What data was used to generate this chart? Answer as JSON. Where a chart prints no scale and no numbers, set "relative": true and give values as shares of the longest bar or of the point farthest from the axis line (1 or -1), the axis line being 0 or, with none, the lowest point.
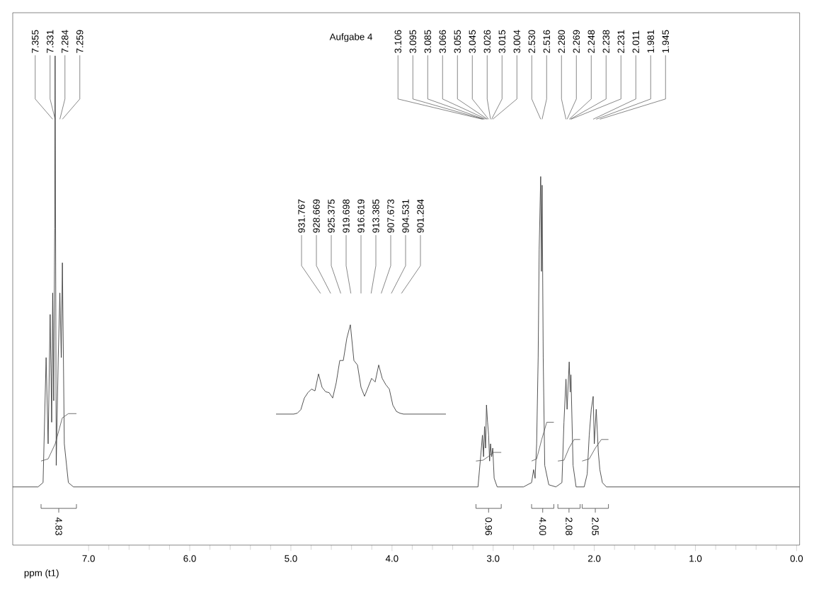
{
  "chart_data": [
    {
      "type": "line",
      "title": "Aufgabe 4",
      "xlabel": "ppm (t1)",
      "relative": true,
      "marker": "none",
      "xlim": [
        7.75,
        -0.03
      ],
      "xticks": [
        {
          "value": 7,
          "label": "7.0"
        },
        {
          "value": 6,
          "label": "6.0"
        },
        {
          "value": 5,
          "label": "5.0"
        },
        {
          "value": 4,
          "label": "4.0"
        },
        {
          "value": 3,
          "label": "3.0"
        },
        {
          "value": 2,
          "label": "2.0"
        },
        {
          "value": 1,
          "label": "1.0"
        },
        {
          "value": 0,
          "label": "0.0"
        }
      ],
      "series": [
        {
          "color": "#333333",
          "x": [
            7.75,
            7.5,
            7.45,
            7.42,
            7.4,
            7.38,
            7.365,
            7.355,
            7.345,
            7.335,
            7.331,
            7.32,
            7.3,
            7.284,
            7.27,
            7.259,
            7.24,
            7.2,
            7.15,
            5.0,
            3.3,
            3.15,
            3.12,
            3.106,
            3.095,
            3.085,
            3.075,
            3.066,
            3.055,
            3.045,
            3.035,
            3.026,
            3.015,
            3.004,
            2.99,
            2.96,
            2.7,
            2.62,
            2.6,
            2.585,
            2.57,
            2.555,
            2.545,
            2.53,
            2.523,
            2.516,
            2.505,
            2.49,
            2.45,
            2.38,
            2.32,
            2.3,
            2.28,
            2.269,
            2.248,
            2.238,
            2.231,
            2.21,
            2.18,
            2.1,
            2.07,
            2.05,
            2.03,
            2.011,
            2.0,
            1.981,
            1.96,
            1.945,
            1.92,
            1.88,
            0.0,
            -0.03
          ],
          "values": [
            0,
            0,
            0.01,
            0.3,
            0.1,
            0.4,
            0.15,
            0.45,
            0.2,
            0.6,
            1.0,
            0.05,
            0.3,
            0.45,
            0.3,
            0.52,
            0.1,
            0.01,
            0,
            0,
            0,
            0,
            0.08,
            0.12,
            0.07,
            0.14,
            0.09,
            0.19,
            0.15,
            0.12,
            0.06,
            0.1,
            0.07,
            0.09,
            0.02,
            0,
            0,
            0.01,
            0.04,
            0.02,
            0.1,
            0.3,
            0.55,
            0.72,
            0.5,
            0.7,
            0.3,
            0.05,
            0.005,
            0,
            0.01,
            0.15,
            0.25,
            0.18,
            0.29,
            0.22,
            0.26,
            0.05,
            0,
            0,
            0.03,
            0.12,
            0.18,
            0.21,
            0.1,
            0.18,
            0.08,
            0.04,
            0.01,
            0,
            0,
            0
          ]
        },
        {
          "color": "#555555",
          "x": [
            7.47,
            7.4,
            7.33,
            7.26,
            7.2,
            7.12
          ],
          "values": [
            0.06,
            0.065,
            0.1,
            0.16,
            0.17,
            0.17
          ]
        },
        {
          "color": "#555555",
          "x": [
            3.17,
            3.1,
            3.05,
            3.0,
            2.92
          ],
          "values": [
            0.06,
            0.062,
            0.07,
            0.08,
            0.08
          ]
        },
        {
          "color": "#555555",
          "x": [
            2.62,
            2.57,
            2.52,
            2.47,
            2.4
          ],
          "values": [
            0.06,
            0.065,
            0.11,
            0.15,
            0.15
          ]
        },
        {
          "color": "#555555",
          "x": [
            2.36,
            2.3,
            2.25,
            2.2,
            2.14
          ],
          "values": [
            0.06,
            0.062,
            0.09,
            0.11,
            0.11
          ]
        },
        {
          "color": "#555555",
          "x": [
            2.12,
            2.05,
            1.99,
            1.93,
            1.86
          ],
          "values": [
            0.06,
            0.065,
            0.09,
            0.11,
            0.11
          ]
        }
      ],
      "annotations": [
        {
          "text": "7.355",
          "x": 7.355
        },
        {
          "text": "7.331",
          "x": 7.331
        },
        {
          "text": "7.284",
          "x": 7.284
        },
        {
          "text": "7.259",
          "x": 7.259
        },
        {
          "text": "3.106",
          "x": 3.106
        },
        {
          "text": "3.095",
          "x": 3.095
        },
        {
          "text": "3.085",
          "x": 3.085
        },
        {
          "text": "3.066",
          "x": 3.066
        },
        {
          "text": "3.055",
          "x": 3.055
        },
        {
          "text": "3.045",
          "x": 3.045
        },
        {
          "text": "3.026",
          "x": 3.026
        },
        {
          "text": "3.015",
          "x": 3.015
        },
        {
          "text": "3.004",
          "x": 3.004
        },
        {
          "text": "2.530",
          "x": 2.53
        },
        {
          "text": "2.516",
          "x": 2.516
        },
        {
          "text": "2.280",
          "x": 2.28
        },
        {
          "text": "2.269",
          "x": 2.269
        },
        {
          "text": "2.248",
          "x": 2.248
        },
        {
          "text": "2.238",
          "x": 2.238
        },
        {
          "text": "2.231",
          "x": 2.231
        },
        {
          "text": "2.011",
          "x": 2.011
        },
        {
          "text": "1.981",
          "x": 1.981
        },
        {
          "text": "1.945",
          "x": 1.945
        },
        "4.83",
        "0.96",
        "4.00",
        "2.08",
        "2.05"
      ]
    },
    {
      "type": "line",
      "relative": true,
      "marker": "none",
      "categories": [
        null,
        null,
        null,
        null,
        null,
        null,
        null,
        null,
        null,
        null,
        null,
        null,
        null,
        null,
        null,
        null,
        null,
        null,
        null,
        null,
        null,
        null,
        null,
        null,
        null,
        null,
        null,
        null,
        null,
        null,
        null,
        null,
        null,
        null,
        null,
        null,
        null,
        null,
        null,
        null,
        null,
        null,
        null,
        null,
        null,
        null,
        null,
        null,
        null
      ],
      "series": [
        {
          "color": "#333333",
          "values": [
            0,
            0,
            0,
            0,
            0,
            0,
            0.01,
            0.05,
            0.18,
            0.24,
            0.28,
            0.26,
            0.45,
            0.3,
            0.25,
            0.24,
            0.18,
            0.35,
            0.6,
            0.6,
            0.85,
            1.0,
            0.6,
            0.55,
            0.3,
            0.2,
            0.3,
            0.4,
            0.36,
            0.55,
            0.4,
            0.33,
            0.28,
            0.1,
            0.03,
            0.01,
            0,
            0,
            0,
            0,
            0,
            0,
            0,
            0,
            0,
            0,
            0,
            0,
            0
          ]
        }
      ],
      "annotations": [
        "931.767",
        "928.669",
        "925.375",
        "919.698",
        "916.619",
        "913.385",
        "907.673",
        "904.531",
        "901.284"
      ]
    }
  ]
}
